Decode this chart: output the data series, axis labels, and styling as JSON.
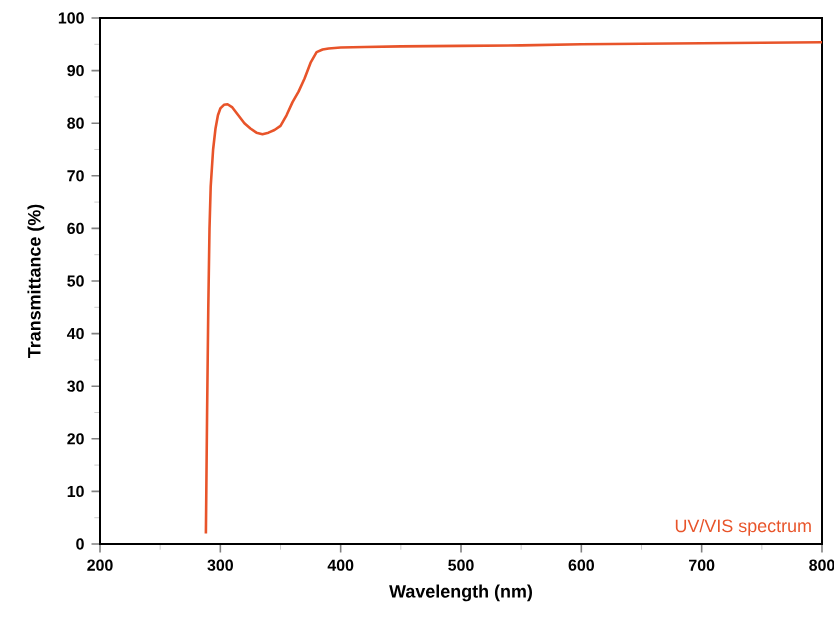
{
  "chart_data": {
    "type": "line",
    "xlabel": "Wavelength (nm)",
    "ylabel": "Transmittance (%)",
    "xlim": [
      200,
      800
    ],
    "ylim": [
      0,
      100
    ],
    "xticks": [
      200,
      300,
      400,
      500,
      600,
      700,
      800
    ],
    "yticks": [
      0,
      10,
      20,
      30,
      40,
      50,
      60,
      70,
      80,
      90,
      100
    ],
    "grid": false,
    "legend": "bottom right",
    "marker": "none",
    "line_style": "solid",
    "series": [
      {
        "name": "UV/VIS spectrum",
        "color": "#e8542a",
        "x": [
          288,
          289,
          290,
          291,
          292,
          294,
          296,
          298,
          300,
          303,
          306,
          310,
          315,
          320,
          325,
          330,
          335,
          340,
          345,
          350,
          355,
          360,
          365,
          370,
          375,
          380,
          385,
          390,
          400,
          420,
          450,
          500,
          550,
          600,
          650,
          700,
          750,
          800
        ],
        "values": [
          2,
          25,
          45,
          60,
          68,
          75,
          79,
          81.5,
          82.8,
          83.5,
          83.6,
          83,
          81.5,
          80,
          79,
          78.2,
          77.9,
          78.2,
          78.7,
          79.5,
          81.5,
          84,
          86,
          88.5,
          91.5,
          93.5,
          94,
          94.2,
          94.4,
          94.5,
          94.6,
          94.7,
          94.8,
          95,
          95.1,
          95.2,
          95.3,
          95.4
        ]
      }
    ]
  }
}
